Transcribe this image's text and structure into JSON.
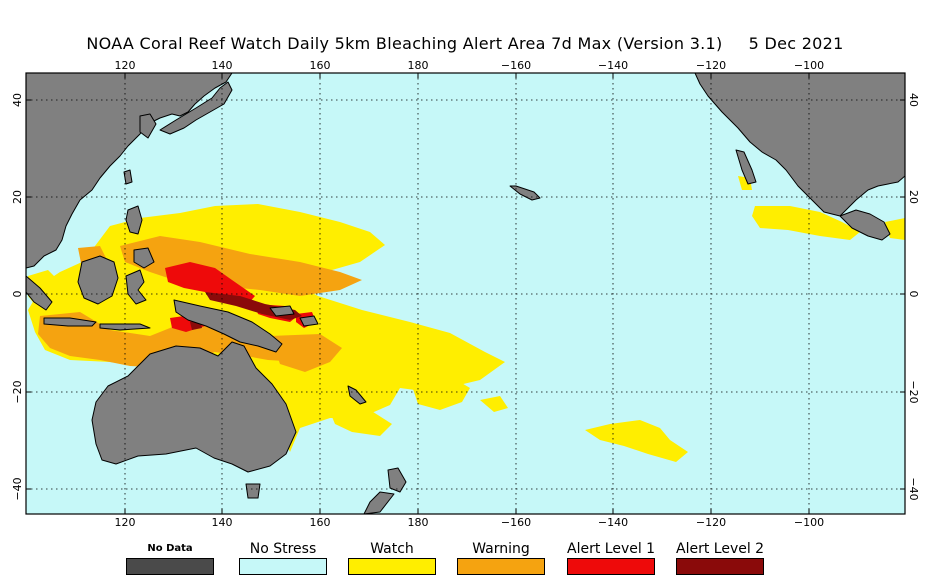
{
  "title": {
    "main": "NOAA Coral Reef Watch Daily 5km Bleaching Alert Area 7d Max (Version 3.1)",
    "date": "5 Dec 2021"
  },
  "map": {
    "lon_ticks": [
      "120",
      "140",
      "160",
      "180",
      "−160",
      "−140",
      "−120",
      "−100"
    ],
    "lat_ticks": [
      "40",
      "20",
      "0",
      "−20",
      "−40"
    ],
    "graticule": "dotted",
    "colors": {
      "ocean": "#c6f8f8",
      "land": "#808080",
      "coast": "#000000"
    }
  },
  "legend": [
    {
      "label": "No Data",
      "color": "#4a4a4a"
    },
    {
      "label": "No Stress",
      "color": "#c6f8f8"
    },
    {
      "label": "Watch",
      "color": "#ffee00"
    },
    {
      "label": "Warning",
      "color": "#f5a310"
    },
    {
      "label": "Alert Level 1",
      "color": "#ee0a0a"
    },
    {
      "label": "Alert Level 2",
      "color": "#8a0a0a"
    }
  ]
}
